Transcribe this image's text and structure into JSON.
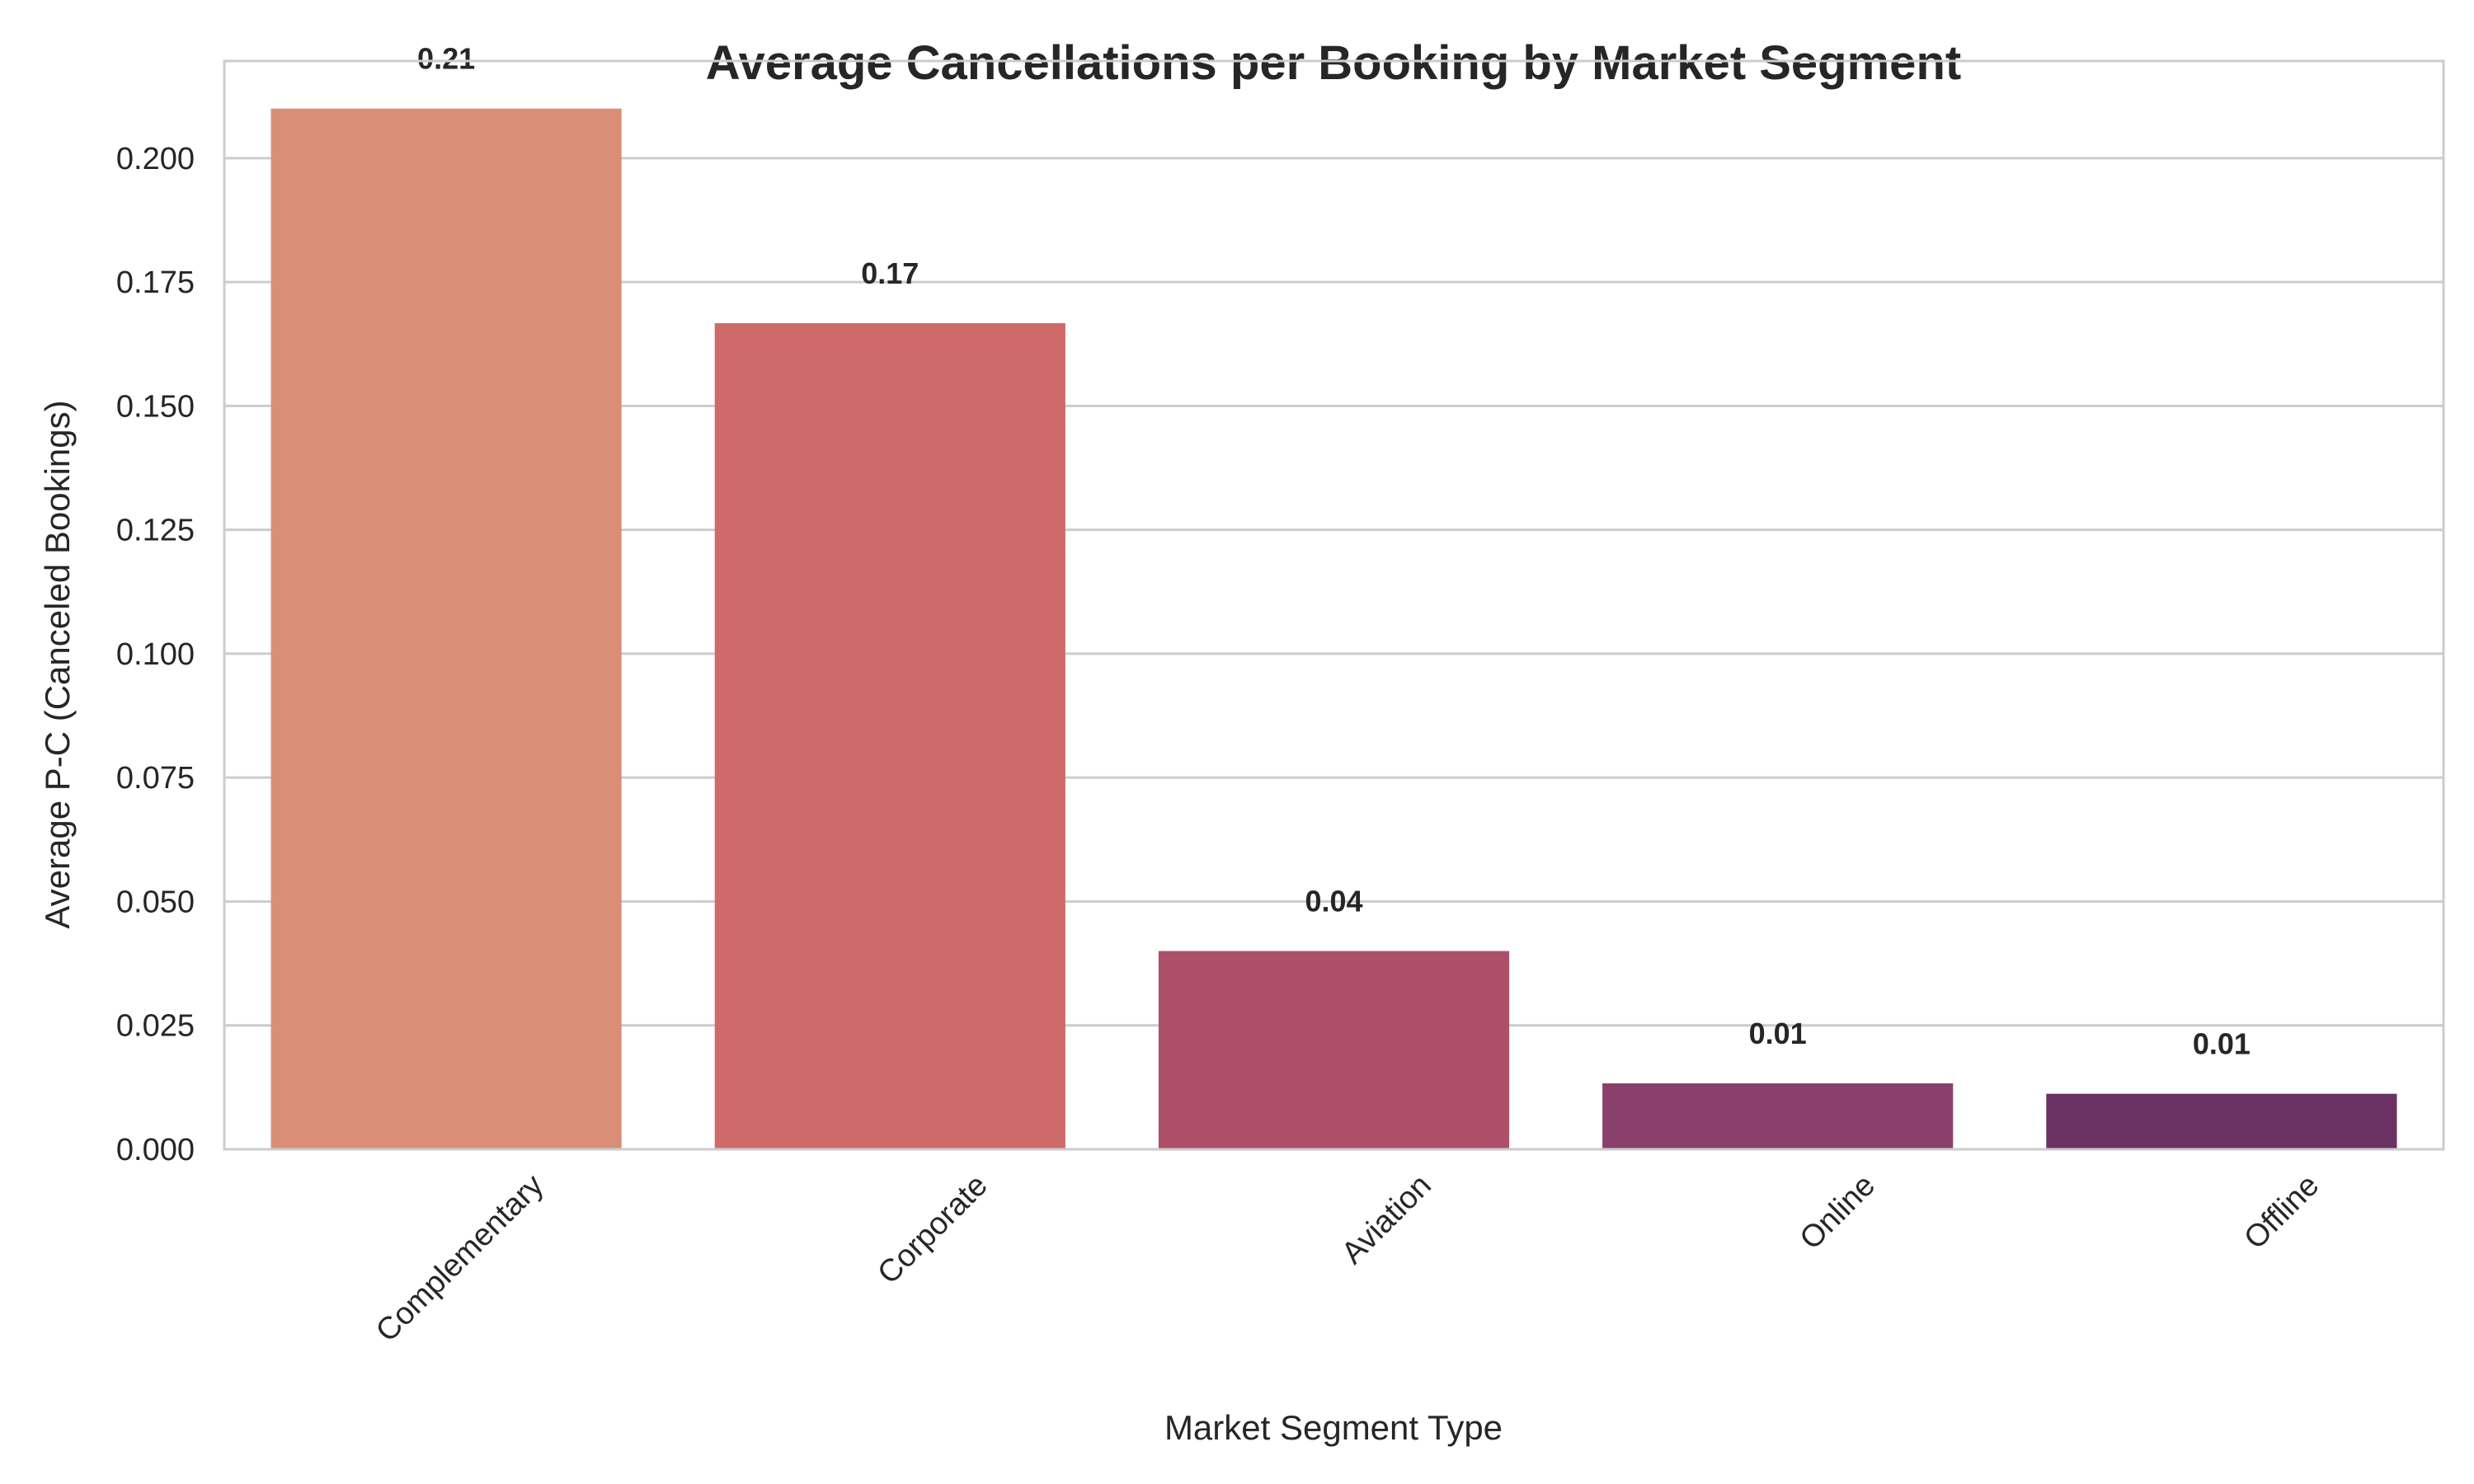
{
  "chart_data": {
    "type": "bar",
    "title": "Average Cancellations per Booking by Market Segment",
    "xlabel": "Market Segment Type",
    "ylabel": "Average P-C (Canceled Bookings)",
    "categories": [
      "Complementary",
      "Corporate",
      "Aviation",
      "Online",
      "Offline"
    ],
    "values": [
      0.21,
      0.1667,
      0.04,
      0.0133,
      0.0112
    ],
    "data_labels": [
      "0.21",
      "0.17",
      "0.04",
      "0.01",
      "0.01"
    ],
    "ylim": [
      0,
      0.2196
    ],
    "yticks": [
      0.0,
      0.025,
      0.05,
      0.075,
      0.1,
      0.125,
      0.15,
      0.175,
      0.2
    ],
    "ytick_labels": [
      "0.000",
      "0.025",
      "0.050",
      "0.075",
      "0.100",
      "0.125",
      "0.150",
      "0.175",
      "0.200"
    ],
    "colors": [
      "#D98E76",
      "#CF6A6A",
      "#AE4F6A",
      "#8B406C",
      "#6A3163"
    ],
    "grid": "horizontal",
    "legend": "none"
  }
}
